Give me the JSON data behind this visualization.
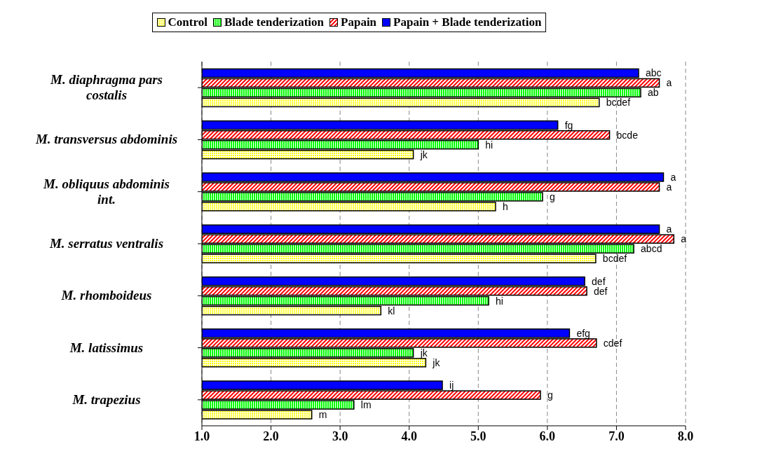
{
  "chart_data": {
    "type": "bar",
    "orientation": "horizontal",
    "categories": [
      "M. diaphragma pars costalis",
      "M. transversus abdominis",
      "M. obliquus abdominis int.",
      "M. serratus ventralis",
      "M. rhomboideus",
      "M. latissimus",
      "M. trapezius"
    ],
    "series": [
      {
        "name": "Control",
        "color": "#ffff00",
        "values": [
          6.75,
          4.06,
          5.25,
          6.7,
          3.59,
          4.24,
          2.59
        ],
        "value_labels": [
          "bcdef",
          "jk",
          "h",
          "bcdef",
          "kl",
          "jk",
          "m"
        ]
      },
      {
        "name": "Blade tenderization",
        "color": "#00ff00",
        "values": [
          7.35,
          5.0,
          5.93,
          7.25,
          5.15,
          4.06,
          3.2
        ],
        "value_labels": [
          "ab",
          "hi",
          "g",
          "abcd",
          "hi",
          "jk",
          "lm"
        ]
      },
      {
        "name": "Papain",
        "color": "#ff0000",
        "values": [
          7.62,
          6.9,
          7.62,
          7.83,
          6.57,
          6.71,
          5.9
        ],
        "value_labels": [
          "a",
          "bcde",
          "a",
          "a",
          "def",
          "cdef",
          "g"
        ]
      },
      {
        "name": "Papain + Blade tenderization",
        "color": "#0000ff",
        "values": [
          7.32,
          6.15,
          7.68,
          7.62,
          6.54,
          6.32,
          4.48
        ],
        "value_labels": [
          "abc",
          "fg",
          "a",
          "a",
          "def",
          "efg",
          "ij"
        ]
      }
    ],
    "xlim": [
      1,
      8
    ],
    "xticks": [
      {
        "value": 1,
        "label": "1.0"
      },
      {
        "value": 2,
        "label": "2.0"
      },
      {
        "value": 3,
        "label": "3.0"
      },
      {
        "value": 4,
        "label": "4.0"
      },
      {
        "value": 5,
        "label": "5.0"
      },
      {
        "value": 6,
        "label": "6.0"
      },
      {
        "value": 7,
        "label": "7.0"
      },
      {
        "value": 8,
        "label": "8.0"
      }
    ],
    "grid": "x",
    "legend": "top"
  }
}
